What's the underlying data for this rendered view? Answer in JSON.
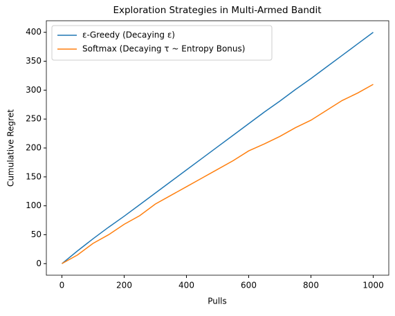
{
  "chart_data": {
    "type": "line",
    "title": "Exploration Strategies in Multi-Armed Bandit",
    "x_label": "Pulls",
    "y_label": "Cumulative Regret",
    "x": [
      0,
      50,
      100,
      150,
      200,
      250,
      300,
      350,
      400,
      450,
      500,
      550,
      600,
      650,
      700,
      750,
      800,
      850,
      900,
      950,
      1000
    ],
    "series": [
      {
        "name": "ε-Greedy (Decaying ε)",
        "color": "#1f77b4",
        "values": [
          0,
          22,
          43,
          63,
          82,
          102,
          122,
          142,
          162,
          182,
          202,
          222,
          242,
          262,
          281,
          301,
          320,
          340,
          360,
          380,
          400
        ]
      },
      {
        "name": "Softmax (Decaying τ ~ Entropy Bonus)",
        "color": "#ff7f0e",
        "values": [
          0,
          15,
          35,
          50,
          68,
          83,
          103,
          118,
          133,
          148,
          163,
          178,
          195,
          207,
          220,
          235,
          248,
          265,
          282,
          295,
          310
        ]
      }
    ],
    "xlim": [
      -50,
      1050
    ],
    "xticks": [
      0,
      200,
      400,
      600,
      800,
      1000
    ],
    "ylim": [
      -20,
      420
    ],
    "yticks": [
      0,
      50,
      100,
      150,
      200,
      250,
      300,
      350,
      400
    ],
    "legend": "upper left",
    "grid": false
  }
}
